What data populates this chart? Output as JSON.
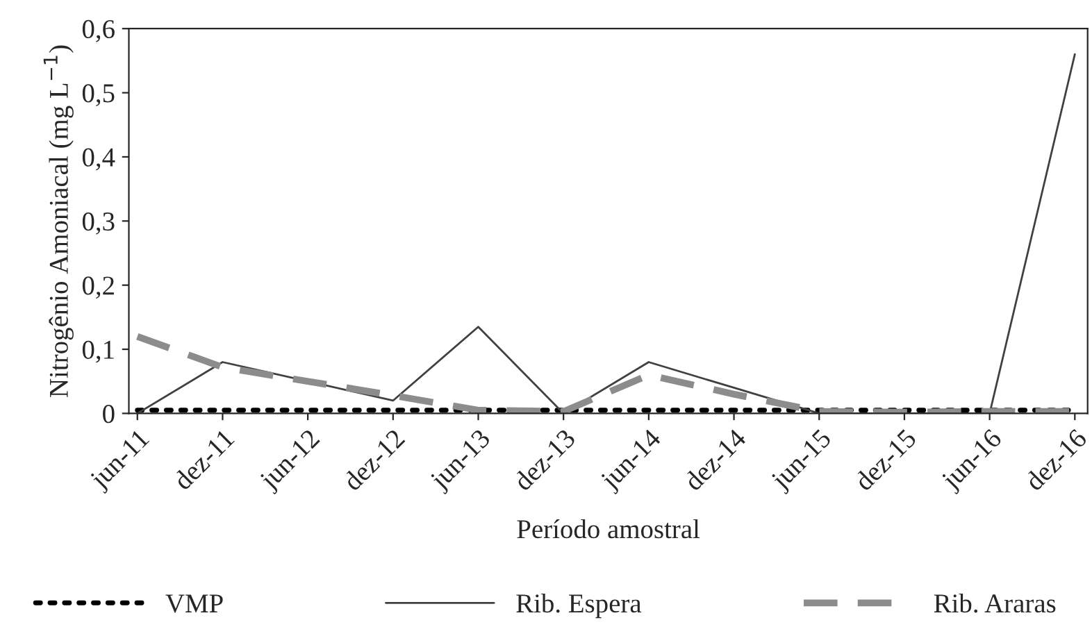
{
  "chart_data": {
    "type": "line",
    "xlabel": "Período amostral",
    "ylabel": "Nitrogênio Amoniacal (mg L$^{−1}$)",
    "categories": [
      "jun-11",
      "dez-11",
      "jun-12",
      "dez-12",
      "jun-13",
      "dez-13",
      "jun-14",
      "dez-14",
      "jun-15",
      "dez-15",
      "jun-16",
      "dez-16"
    ],
    "series": [
      {
        "name": "VMP",
        "color": "#000000",
        "line_style": "dotted",
        "values": [
          0.005,
          0.005,
          0.005,
          0.005,
          0.005,
          0.005,
          0.005,
          0.005,
          0.005,
          0.005,
          0.005,
          0.005
        ]
      },
      {
        "name": "Rib. Espera",
        "color": "#404040",
        "line_style": "solid",
        "values": [
          0.0,
          0.08,
          0.05,
          0.02,
          0.135,
          0.0,
          0.08,
          0.04,
          0.0,
          0.0,
          0.0,
          0.56
        ]
      },
      {
        "name": "Rib. Araras",
        "color": "#8c8c8c",
        "line_style": "dashed",
        "values": [
          0.12,
          0.072,
          0.05,
          0.028,
          0.005,
          0.003,
          0.06,
          0.03,
          0.003,
          0.002,
          0.003,
          0.003
        ]
      }
    ],
    "ylim": [
      0,
      0.6
    ],
    "yticks": [
      0,
      {
        "value": 0.1,
        "label": "0,1"
      },
      {
        "value": 0.2,
        "label": "0,2"
      },
      {
        "value": 0.3,
        "label": "0,3"
      },
      {
        "value": 0.4,
        "label": "0,4"
      },
      {
        "value": 0.5,
        "label": "0,5"
      },
      {
        "value": 0.6,
        "label": "0,6"
      }
    ],
    "grid": false,
    "legend": "bottom",
    "marker": "none"
  }
}
